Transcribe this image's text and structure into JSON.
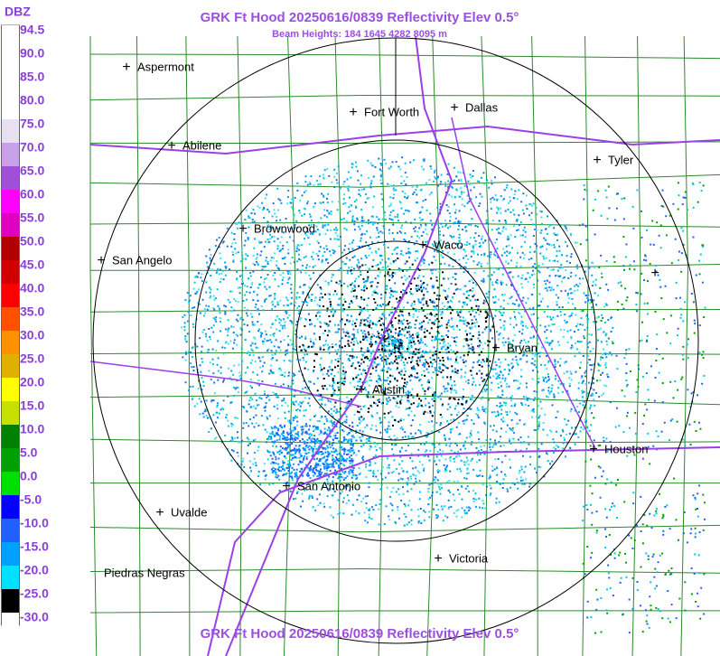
{
  "header": {
    "title": "GRK Ft Hood 20250616/0839 Reflectivity Elev 0.5°",
    "subtitle": "Beam Heights: 184 1645 4282 8095 m",
    "footer": "GRK Ft Hood 20250616/0839 Reflectivity Elev 0.5°"
  },
  "legend": {
    "unit": "DBZ",
    "labels": [
      "94.5",
      "90.0",
      "85.0",
      "80.0",
      "75.0",
      "70.0",
      "65.0",
      "60.0",
      "55.0",
      "50.0",
      "45.0",
      "40.0",
      "35.0",
      "30.0",
      "25.0",
      "20.0",
      "15.0",
      "10.0",
      "5.0",
      "0.0",
      "-5.0",
      "-10.0",
      "-15.0",
      "-20.0",
      "-25.0",
      "-30.0"
    ],
    "colors": [
      "#ffffff",
      "#ffffff",
      "#ffffff",
      "#ffffff",
      "#e8e0f0",
      "#c8a0e8",
      "#a050d8",
      "#ff00ff",
      "#e000c0",
      "#b00000",
      "#d00000",
      "#ff0000",
      "#ff5000",
      "#ff9000",
      "#e0b000",
      "#ffff00",
      "#c8e000",
      "#008000",
      "#00a000",
      "#00e000",
      "#0000ff",
      "#2060ff",
      "#00a0ff",
      "#00e0ff",
      "#000000",
      "#ffffff"
    ]
  },
  "cities": [
    "Aspermont",
    "Abilene",
    "Fort Worth",
    "Dallas",
    "Tyler",
    "Brownwood",
    "San Angelo",
    "Waco",
    "Bryan",
    "Austin",
    "Houston",
    "San Antonio",
    "Uvalde",
    "Victoria",
    "Piedras Negras"
  ]
}
